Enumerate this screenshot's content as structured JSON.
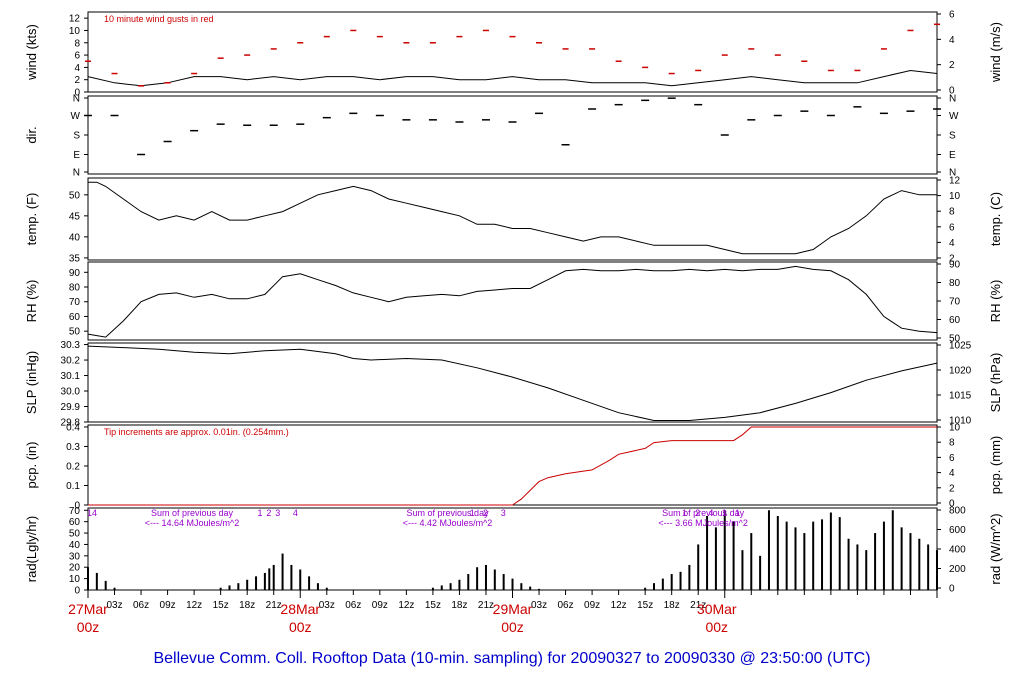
{
  "footer_title": "Bellevue Comm. Coll. Rooftop Data (10-min. sampling) for 20090327  to  20090330 @ 23:50:00  (UTC)",
  "colors": {
    "axis": "#000000",
    "accent_red": "#cc0000",
    "annotation_purple": "#9900cc",
    "footer_blue": "#0000cc"
  },
  "chart_data": [
    {
      "panel": "wind",
      "type": "line",
      "left_label": "wind (kts)",
      "right_label": "wind (m/s)",
      "left_ticks": [
        0,
        2,
        4,
        6,
        8,
        10,
        12
      ],
      "right_ticks": [
        0,
        2,
        4,
        6
      ],
      "ylim": [
        0,
        13
      ],
      "annotation": "10  minute wind gusts in red",
      "series": [
        {
          "kind": "sustained",
          "color": "#000000",
          "x": [
            0,
            3,
            6,
            9,
            12,
            15,
            18,
            21,
            24,
            27,
            30,
            33,
            36,
            39,
            42,
            45,
            48,
            51,
            54,
            57,
            60,
            63,
            66,
            69,
            72,
            75,
            78,
            81,
            84,
            87,
            90,
            93,
            96
          ],
          "y": [
            2.5,
            1.5,
            1,
            1.5,
            2.5,
            2.5,
            2,
            2.5,
            2,
            2.5,
            2.5,
            2,
            2.5,
            2.5,
            2,
            2,
            2.5,
            2,
            2,
            1.5,
            1.5,
            1.5,
            1,
            1.5,
            2,
            2.5,
            2,
            1.5,
            1.5,
            1.5,
            2.5,
            3.5,
            3
          ]
        },
        {
          "kind": "gust",
          "color": "#cc0000",
          "x": [
            0,
            3,
            6,
            9,
            12,
            15,
            18,
            21,
            24,
            27,
            30,
            33,
            36,
            39,
            42,
            45,
            48,
            51,
            54,
            57,
            60,
            63,
            66,
            69,
            72,
            75,
            78,
            81,
            84,
            87,
            90,
            93,
            96
          ],
          "y": [
            5,
            3,
            1,
            1.5,
            3,
            5.5,
            6,
            7,
            8,
            9,
            10,
            9,
            8,
            8,
            9,
            10,
            9,
            8,
            7,
            7,
            5,
            4,
            3,
            3.5,
            6,
            7,
            6,
            5,
            3.5,
            3.5,
            7,
            10,
            11
          ]
        }
      ]
    },
    {
      "panel": "dir",
      "type": "scatter",
      "left_label": "dir.",
      "left_ticks": [
        "N",
        "E",
        "S",
        "W",
        "N"
      ],
      "right_ticks": [
        "N",
        "E",
        "S",
        "W",
        "N"
      ],
      "ylim": [
        0,
        360
      ],
      "x": [
        0,
        3,
        6,
        9,
        12,
        15,
        18,
        21,
        24,
        27,
        30,
        33,
        36,
        39,
        42,
        45,
        48,
        51,
        54,
        57,
        60,
        63,
        66,
        69,
        72,
        75,
        78,
        81,
        84,
        87,
        90,
        93,
        96
      ],
      "y": [
        270,
        270,
        90,
        150,
        200,
        230,
        225,
        225,
        230,
        260,
        280,
        270,
        250,
        250,
        240,
        250,
        240,
        280,
        135,
        300,
        320,
        340,
        350,
        320,
        180,
        250,
        270,
        290,
        270,
        310,
        280,
        290,
        300
      ]
    },
    {
      "panel": "temp",
      "type": "line",
      "left_label": "temp. (F)",
      "right_label": "temp. (C)",
      "left_ticks": [
        35,
        40,
        45,
        50
      ],
      "right_ticks": [
        2,
        4,
        6,
        8,
        10,
        12
      ],
      "ylim": [
        34.5,
        54
      ],
      "x": [
        0,
        1,
        2,
        4,
        6,
        8,
        10,
        12,
        14,
        16,
        18,
        20,
        22,
        24,
        26,
        28,
        30,
        32,
        34,
        36,
        38,
        40,
        42,
        44,
        46,
        48,
        50,
        52,
        54,
        56,
        58,
        60,
        62,
        64,
        66,
        68,
        70,
        72,
        74,
        76,
        78,
        80,
        82,
        84,
        86,
        88,
        90,
        92,
        94,
        96
      ],
      "y": [
        53,
        53,
        52,
        49,
        46,
        44,
        45,
        44,
        46,
        44,
        44,
        45,
        46,
        48,
        50,
        51,
        52,
        51,
        49,
        48,
        47,
        46,
        45,
        43,
        43,
        42,
        42,
        41,
        40,
        39,
        40,
        40,
        39,
        38,
        38,
        38,
        38,
        37,
        36,
        36,
        36,
        36,
        37,
        40,
        42,
        45,
        49,
        51,
        50,
        50
      ]
    },
    {
      "panel": "rh",
      "type": "line",
      "left_label": "RH (%)",
      "right_label": "RH (%)",
      "left_ticks": [
        50,
        60,
        70,
        80,
        90
      ],
      "right_ticks": [
        50,
        60,
        70,
        80,
        90
      ],
      "ylim": [
        44,
        97
      ],
      "x": [
        0,
        1,
        2,
        4,
        6,
        8,
        10,
        12,
        14,
        16,
        18,
        20,
        22,
        24,
        26,
        28,
        30,
        32,
        34,
        36,
        38,
        40,
        42,
        44,
        46,
        48,
        50,
        52,
        54,
        56,
        58,
        60,
        62,
        64,
        66,
        68,
        70,
        72,
        74,
        76,
        78,
        80,
        82,
        84,
        86,
        88,
        90,
        92,
        94,
        96
      ],
      "y": [
        48,
        47,
        46,
        57,
        70,
        75,
        76,
        73,
        75,
        72,
        72,
        75,
        87,
        89,
        85,
        81,
        76,
        73,
        70,
        73,
        74,
        75,
        74,
        77,
        78,
        79,
        79,
        85,
        91,
        92,
        91,
        91,
        92,
        91,
        91,
        92,
        91,
        92,
        91,
        92,
        92,
        94,
        92,
        91,
        85,
        75,
        60,
        52,
        50,
        49
      ]
    },
    {
      "panel": "slp",
      "type": "line",
      "left_label": "SLP (inHg)",
      "right_label": "SLP (hPa)",
      "left_ticks": [
        29.8,
        29.9,
        30.0,
        30.1,
        30.2,
        30.3
      ],
      "right_ticks": [
        1010,
        1015,
        1020,
        1025
      ],
      "ylim": [
        29.8,
        30.31
      ],
      "x": [
        0,
        4,
        8,
        12,
        16,
        20,
        24,
        28,
        30,
        32,
        36,
        40,
        44,
        48,
        52,
        56,
        60,
        64,
        68,
        72,
        76,
        80,
        84,
        88,
        92,
        96
      ],
      "y": [
        30.29,
        30.28,
        30.27,
        30.25,
        30.24,
        30.26,
        30.27,
        30.24,
        30.21,
        30.2,
        30.21,
        30.2,
        30.15,
        30.09,
        30.02,
        29.94,
        29.86,
        29.81,
        29.81,
        29.83,
        29.86,
        29.92,
        29.99,
        30.07,
        30.13,
        30.18
      ]
    },
    {
      "panel": "pcp",
      "type": "line",
      "left_label": "pcp. (in)",
      "right_label": "pcp. (mm)",
      "left_ticks": [
        0.0,
        0.1,
        0.2,
        0.3,
        0.4
      ],
      "right_ticks": [
        0,
        2,
        4,
        6,
        8,
        10
      ],
      "ylim": [
        0,
        0.41
      ],
      "annotation": "Tip increments are approx. 0.01in. (0.254mm.)",
      "x": [
        0,
        48,
        49,
        51,
        52,
        54,
        57,
        59,
        60,
        63,
        64,
        66,
        70,
        73,
        74,
        75,
        78,
        83,
        96
      ],
      "y": [
        0,
        0,
        0.03,
        0.12,
        0.14,
        0.16,
        0.18,
        0.23,
        0.26,
        0.29,
        0.32,
        0.33,
        0.33,
        0.33,
        0.36,
        0.4,
        0.4,
        0.4,
        0.4
      ]
    },
    {
      "panel": "rad",
      "type": "bar",
      "left_label": "rad(Lgly/hr)",
      "right_label": "rad (W/m^2)",
      "left_ticks": [
        0,
        10,
        20,
        30,
        40,
        50,
        60,
        70
      ],
      "right_ticks": [
        0,
        200,
        400,
        600,
        800
      ],
      "ylim": [
        0,
        72
      ],
      "x": [
        0,
        1,
        2,
        3,
        15,
        16,
        17,
        18,
        19,
        20,
        20.5,
        21,
        22,
        23,
        24,
        25,
        26,
        27,
        39,
        40,
        41,
        42,
        43,
        44,
        45,
        46,
        47,
        48,
        49,
        50,
        51,
        63,
        64,
        65,
        66,
        67,
        68,
        69,
        70,
        71,
        72,
        73,
        74,
        75,
        76,
        77,
        78,
        79,
        80,
        81,
        82,
        83,
        84,
        85,
        86,
        87,
        88,
        89,
        90,
        91,
        92,
        93,
        94,
        95,
        96
      ],
      "values": [
        20,
        15,
        8,
        2,
        2,
        4,
        6,
        9,
        12,
        15,
        19,
        22,
        32,
        22,
        18,
        12,
        6,
        2,
        2,
        4,
        6,
        9,
        14,
        20,
        22,
        18,
        14,
        10,
        6,
        3,
        1,
        2,
        6,
        10,
        14,
        16,
        22,
        40,
        65,
        55,
        70,
        60,
        35,
        50,
        30,
        70,
        65,
        60,
        55,
        50,
        60,
        62,
        68,
        64,
        45,
        40,
        35,
        50,
        60,
        70,
        55,
        50,
        45,
        40,
        35
      ],
      "annotations": [
        {
          "text": "Sum of previous day",
          "x": 0.38,
          "value_text": "<--- 14.64 MJoules/m^2"
        },
        {
          "text": "Sum of previous day",
          "x": 0.69,
          "value_text": "<--- 4.42 MJoules/m^2"
        },
        {
          "text": "Sum of previous day",
          "x": 0.31,
          "value_text": "<--- 3.66 MJoules/m^2"
        }
      ],
      "hour_markers": [
        {
          "label": "14",
          "x": 0
        },
        {
          "label": "1",
          "x": 19
        },
        {
          "label": "2",
          "x": 20
        },
        {
          "label": "3",
          "x": 21
        },
        {
          "label": "4",
          "x": 23
        },
        {
          "label": "1",
          "x": 43
        },
        {
          "label": "2",
          "x": 44.5
        },
        {
          "label": "3",
          "x": 46.5
        },
        {
          "label": "1",
          "x": 67
        },
        {
          "label": "2",
          "x": 68.5
        },
        {
          "label": "4",
          "x": 70
        },
        {
          "label": "1",
          "x": 71.5
        },
        {
          "label": "1",
          "x": 73
        }
      ]
    }
  ],
  "x_axis": {
    "hour_ticks": [
      "03z",
      "06z",
      "09z",
      "12z",
      "15z",
      "18z",
      "21z",
      "03z",
      "06z",
      "09z",
      "12z",
      "15z",
      "18z",
      "21z",
      "03z",
      "06z",
      "09z",
      "12z",
      "15z",
      "18z",
      "21z"
    ],
    "day_labels": [
      {
        "date": "27Mar",
        "time": "00z"
      },
      {
        "date": "28Mar",
        "time": "00z"
      },
      {
        "date": "29Mar",
        "time": "00z"
      },
      {
        "date": "30Mar",
        "time": "00z"
      }
    ]
  }
}
